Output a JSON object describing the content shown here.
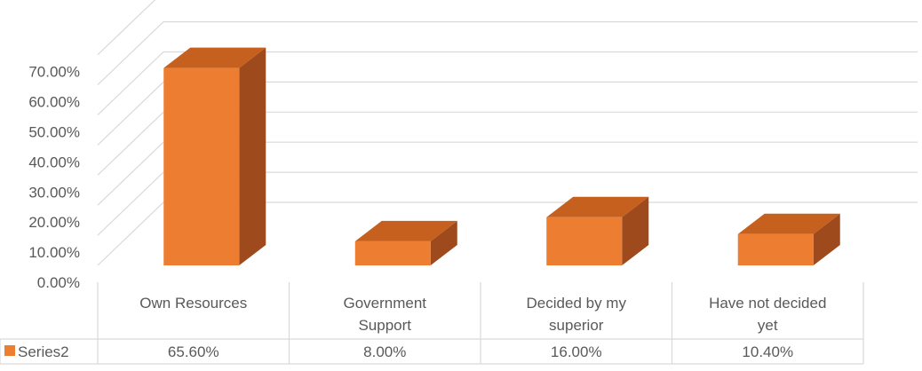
{
  "chart_data": {
    "type": "bar",
    "style": "3d-column-with-data-table",
    "categories_lines": [
      [
        "Own Resources"
      ],
      [
        "Government",
        "Support"
      ],
      [
        "Decided by my",
        "superior"
      ],
      [
        "Have not decided",
        "yet"
      ]
    ],
    "categories": [
      "Own Resources",
      "Government Support",
      "Decided by my superior",
      "Have not decided yet"
    ],
    "series": [
      {
        "name": "Series2",
        "values": [
          0.656,
          0.08,
          0.16,
          0.104
        ],
        "labels": [
          "65.60%",
          "8.00%",
          "16.00%",
          "10.40%"
        ]
      }
    ],
    "ylim": [
      0,
      0.7
    ],
    "yticks": [
      0,
      0.1,
      0.2,
      0.3,
      0.4,
      0.5,
      0.6,
      0.7
    ],
    "ytick_labels": [
      "0.00%",
      "10.00%",
      "20.00%",
      "30.00%",
      "40.00%",
      "50.00%",
      "60.00%",
      "70.00%"
    ],
    "grid": true,
    "legend": "data-table",
    "colors": {
      "front": "#ED7D31",
      "top": "#C5601E",
      "side": "#9E4A1C",
      "grid": "#D9D9D9",
      "text": "#595959"
    }
  }
}
